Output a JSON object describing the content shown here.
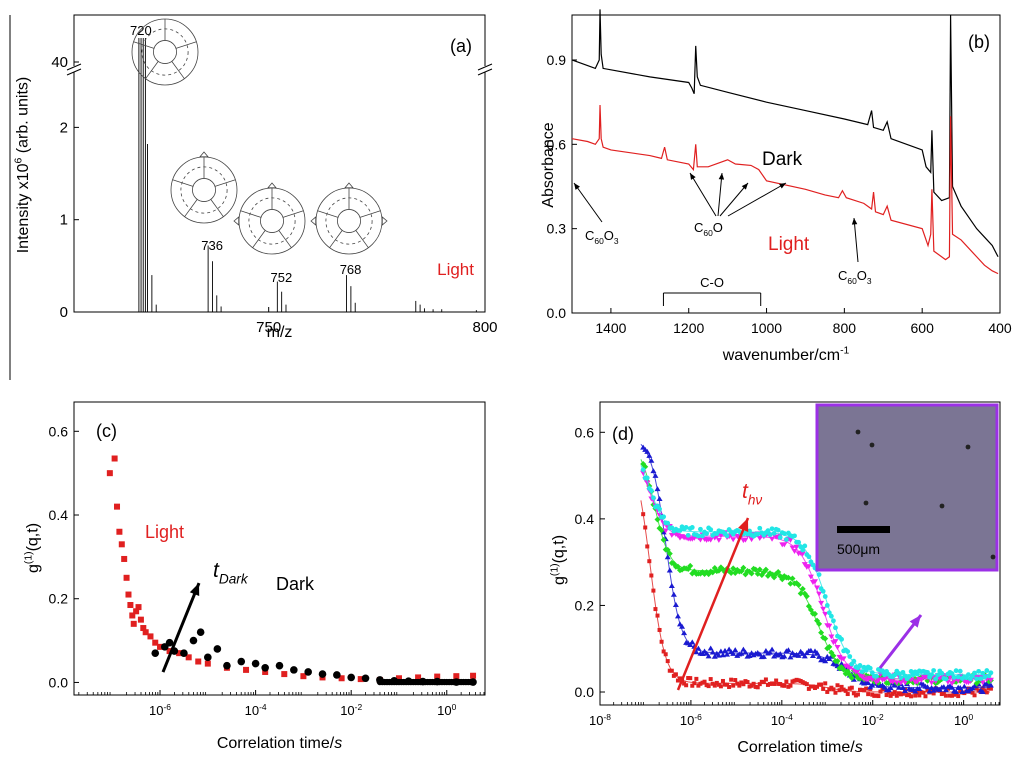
{
  "colors": {
    "axis": "#000000",
    "red": "#e02020",
    "green": "#22dd22",
    "blue": "#1a1ad0",
    "magenta": "#ee22ee",
    "cyan": "#22e6e6",
    "inset_border": "#9b30e6",
    "inset_fill": "#7b7594"
  },
  "chart_data": [
    {
      "id": "a",
      "type": "line",
      "panel_label": "(a)",
      "xlabel": "m/z",
      "ylabel_main": "Intensity x10",
      "ylabel_sup": "6",
      "ylabel_tail": "(arb. units)",
      "xlim": [
        705,
        800
      ],
      "xticks": [
        {
          "v": 750,
          "t": "750"
        },
        {
          "v": 800,
          "t": "800"
        }
      ],
      "ylim": [
        0,
        2.6
      ],
      "yticks": [
        {
          "v": 0,
          "t": "0"
        },
        {
          "v": 1,
          "t": "1"
        },
        {
          "v": 2,
          "t": "2"
        }
      ],
      "upper_tick": "40",
      "axis_break": true,
      "peak_labels": [
        {
          "x": 720,
          "t": "720"
        },
        {
          "x": 736,
          "t": "736"
        },
        {
          "x": 752,
          "t": "752"
        },
        {
          "x": 768,
          "t": "768"
        }
      ],
      "annotation": "Light",
      "peaks": [
        [
          720,
          3.5
        ],
        [
          720.5,
          3.5
        ],
        [
          721,
          3.5
        ],
        [
          721.5,
          3.3
        ],
        [
          722,
          1.82
        ],
        [
          723,
          0.4
        ],
        [
          724,
          0.08
        ],
        [
          736,
          0.72
        ],
        [
          737,
          0.55
        ],
        [
          738,
          0.18
        ],
        [
          739,
          0.06
        ],
        [
          752,
          0.33
        ],
        [
          753,
          0.22
        ],
        [
          754,
          0.08
        ],
        [
          768,
          0.4
        ],
        [
          769,
          0.28
        ],
        [
          770,
          0.1
        ],
        [
          784,
          0.12
        ],
        [
          785,
          0.08
        ],
        [
          786,
          0.04
        ],
        [
          788,
          0.03
        ],
        [
          790,
          0.03
        ],
        [
          798,
          0.02
        ]
      ]
    },
    {
      "id": "b",
      "type": "line",
      "panel_label": "(b)",
      "xlabel": "wavenumber/cm",
      "xlabel_sup": "-1",
      "ylabel": "Absorbance",
      "xlim": [
        1500,
        400
      ],
      "ylim": [
        0,
        1.06
      ],
      "xticks": [
        {
          "v": 1400,
          "t": "1400"
        },
        {
          "v": 1200,
          "t": "1200"
        },
        {
          "v": 1000,
          "t": "1000"
        },
        {
          "v": 800,
          "t": "800"
        },
        {
          "v": 600,
          "t": "600"
        },
        {
          "v": 400,
          "t": "400"
        }
      ],
      "yticks": [
        {
          "v": 0.0,
          "t": "0.0"
        },
        {
          "v": 0.3,
          "t": "0.3"
        },
        {
          "v": 0.6,
          "t": "0.6"
        },
        {
          "v": 0.9,
          "t": "0.9"
        }
      ],
      "series": [
        {
          "name": "Dark",
          "points": [
            [
              1500,
              0.9
            ],
            [
              1460,
              0.88
            ],
            [
              1440,
              0.87
            ],
            [
              1430,
              0.9
            ],
            [
              1428,
              1.08
            ],
            [
              1425,
              0.92
            ],
            [
              1420,
              0.87
            ],
            [
              1400,
              0.865
            ],
            [
              1300,
              0.84
            ],
            [
              1200,
              0.82
            ],
            [
              1192,
              0.8
            ],
            [
              1186,
              0.78
            ],
            [
              1182,
              0.95
            ],
            [
              1178,
              0.84
            ],
            [
              1170,
              0.81
            ],
            [
              1100,
              0.785
            ],
            [
              1000,
              0.75
            ],
            [
              900,
              0.72
            ],
            [
              800,
              0.69
            ],
            [
              740,
              0.67
            ],
            [
              730,
              0.72
            ],
            [
              725,
              0.66
            ],
            [
              700,
              0.65
            ],
            [
              690,
              0.68
            ],
            [
              680,
              0.62
            ],
            [
              600,
              0.58
            ],
            [
              590,
              0.52
            ],
            [
              578,
              0.5
            ],
            [
              575,
              0.65
            ],
            [
              570,
              0.43
            ],
            [
              550,
              0.4
            ],
            [
              530,
              0.41
            ],
            [
              527,
              1.06
            ],
            [
              522,
              0.45
            ],
            [
              500,
              0.38
            ],
            [
              460,
              0.3
            ],
            [
              440,
              0.27
            ],
            [
              420,
              0.24
            ],
            [
              405,
              0.2
            ]
          ]
        },
        {
          "name": "Light",
          "points": [
            [
              1500,
              0.62
            ],
            [
              1460,
              0.61
            ],
            [
              1440,
              0.6
            ],
            [
              1430,
              0.62
            ],
            [
              1428,
              0.74
            ],
            [
              1425,
              0.62
            ],
            [
              1420,
              0.59
            ],
            [
              1400,
              0.58
            ],
            [
              1300,
              0.56
            ],
            [
              1270,
              0.55
            ],
            [
              1262,
              0.59
            ],
            [
              1255,
              0.545
            ],
            [
              1200,
              0.53
            ],
            [
              1188,
              0.51
            ],
            [
              1182,
              0.6
            ],
            [
              1178,
              0.52
            ],
            [
              1150,
              0.52
            ],
            [
              1100,
              0.545
            ],
            [
              1080,
              0.53
            ],
            [
              1040,
              0.525
            ],
            [
              1020,
              0.51
            ],
            [
              1000,
              0.47
            ],
            [
              900,
              0.44
            ],
            [
              850,
              0.42
            ],
            [
              815,
              0.41
            ],
            [
              805,
              0.435
            ],
            [
              795,
              0.41
            ],
            [
              750,
              0.39
            ],
            [
              730,
              0.37
            ],
            [
              725,
              0.43
            ],
            [
              720,
              0.36
            ],
            [
              700,
              0.35
            ],
            [
              690,
              0.38
            ],
            [
              680,
              0.33
            ],
            [
              600,
              0.3
            ],
            [
              585,
              0.24
            ],
            [
              578,
              0.28
            ],
            [
              575,
              0.44
            ],
            [
              570,
              0.22
            ],
            [
              540,
              0.19
            ],
            [
              530,
              0.2
            ],
            [
              527,
              0.7
            ],
            [
              522,
              0.28
            ],
            [
              500,
              0.26
            ],
            [
              460,
              0.2
            ],
            [
              440,
              0.17
            ],
            [
              420,
              0.15
            ],
            [
              405,
              0.14
            ]
          ]
        }
      ],
      "labels": {
        "dark": "Dark",
        "light": "Light",
        "c60o": "C",
        "c60o_sub": "60",
        "c60o_tail": "O",
        "c60o3_tail": "O",
        "c60o3_sub2": "3",
        "co": "C-O"
      },
      "co_bracket": [
        1265,
        1015
      ]
    },
    {
      "id": "c",
      "type": "scatter",
      "panel_label": "(c)",
      "xlabel": "Correlation time/",
      "xlabel_it": "s",
      "ylabel_main": "g",
      "ylabel_sup": "(1)",
      "ylabel_tail": "(q,t)",
      "xlim_log10": [
        -7.8,
        0.8
      ],
      "ylim": [
        -0.03,
        0.67
      ],
      "xticks": [
        {
          "e": -6,
          "t": "10",
          "s": "-6"
        },
        {
          "e": -4,
          "t": "10",
          "s": "-4"
        },
        {
          "e": -2,
          "t": "10",
          "s": "-2"
        },
        {
          "e": 0,
          "t": "10",
          "s": "0"
        }
      ],
      "yticks": [
        {
          "v": 0.0,
          "t": "0.0"
        },
        {
          "v": 0.2,
          "t": "0.2"
        },
        {
          "v": 0.4,
          "t": "0.4"
        },
        {
          "v": 0.6,
          "t": "0.6"
        }
      ],
      "labels": {
        "light": "Light",
        "dark": "Dark",
        "t": "t",
        "t_sub": "Dark"
      },
      "series": [
        {
          "name": "Light",
          "values": [
            [
              -7.05,
              0.5
            ],
            [
              -6.95,
              0.535
            ],
            [
              -6.9,
              0.42
            ],
            [
              -6.85,
              0.36
            ],
            [
              -6.8,
              0.33
            ],
            [
              -6.75,
              0.295
            ],
            [
              -6.7,
              0.25
            ],
            [
              -6.66,
              0.21
            ],
            [
              -6.62,
              0.185
            ],
            [
              -6.58,
              0.16
            ],
            [
              -6.55,
              0.14
            ],
            [
              -6.5,
              0.17
            ],
            [
              -6.45,
              0.18
            ],
            [
              -6.4,
              0.15
            ],
            [
              -6.35,
              0.13
            ],
            [
              -6.3,
              0.12
            ],
            [
              -6.2,
              0.11
            ],
            [
              -6.1,
              0.095
            ],
            [
              -6.0,
              0.085
            ],
            [
              -5.8,
              0.075
            ],
            [
              -5.6,
              0.07
            ],
            [
              -5.4,
              0.06
            ],
            [
              -5.2,
              0.05
            ],
            [
              -5.0,
              0.045
            ],
            [
              -4.6,
              0.035
            ],
            [
              -4.2,
              0.03
            ],
            [
              -3.8,
              0.025
            ],
            [
              -3.4,
              0.02
            ],
            [
              -3.0,
              0.015
            ],
            [
              -2.6,
              0.012
            ],
            [
              -2.2,
              0.01
            ],
            [
              -1.8,
              0.008
            ],
            [
              -1.4,
              0.006
            ],
            [
              -1.0,
              0.01
            ],
            [
              -0.6,
              0.012
            ],
            [
              -0.2,
              0.014
            ],
            [
              0.2,
              0.015
            ],
            [
              0.55,
              0.016
            ]
          ]
        },
        {
          "name": "Dark",
          "values": [
            [
              -6.1,
              0.07
            ],
            [
              -5.9,
              0.085
            ],
            [
              -5.8,
              0.095
            ],
            [
              -5.7,
              0.075
            ],
            [
              -5.5,
              0.07
            ],
            [
              -5.3,
              0.1
            ],
            [
              -5.15,
              0.12
            ],
            [
              -5.0,
              0.06
            ],
            [
              -4.8,
              0.08
            ],
            [
              -4.6,
              0.04
            ],
            [
              -4.3,
              0.05
            ],
            [
              -4.0,
              0.045
            ],
            [
              -3.8,
              0.035
            ],
            [
              -3.5,
              0.04
            ],
            [
              -3.2,
              0.03
            ],
            [
              -2.9,
              0.025
            ],
            [
              -2.6,
              0.02
            ],
            [
              -2.3,
              0.018
            ],
            [
              -2.0,
              0.012
            ],
            [
              -1.7,
              0.01
            ],
            [
              -1.4,
              0.006
            ],
            [
              -1.1,
              0.004
            ],
            [
              -0.8,
              0.003
            ],
            [
              -0.5,
              0.002
            ],
            [
              -0.2,
              0.002
            ],
            [
              0.2,
              0.001
            ],
            [
              0.55,
              0.001
            ]
          ]
        }
      ]
    },
    {
      "id": "d",
      "type": "scatter",
      "panel_label": "(d)",
      "xlabel": "Correlation time/",
      "xlabel_it": "s",
      "ylabel_main": "g",
      "ylabel_sup": "(1)",
      "ylabel_tail": "(q,t)",
      "xlim_log10": [
        -8,
        0.8
      ],
      "ylim": [
        -0.03,
        0.67
      ],
      "xticks": [
        {
          "e": -8,
          "t": "10",
          "s": "-8"
        },
        {
          "e": -6,
          "t": "10",
          "s": "-6"
        },
        {
          "e": -4,
          "t": "10",
          "s": "-4"
        },
        {
          "e": -2,
          "t": "10",
          "s": "-2"
        },
        {
          "e": 0,
          "t": "10",
          "s": "0"
        }
      ],
      "yticks": [
        {
          "v": 0.0,
          "t": "0.0"
        },
        {
          "v": 0.2,
          "t": "0.2"
        },
        {
          "v": 0.4,
          "t": "0.4"
        },
        {
          "v": 0.6,
          "t": "0.6"
        }
      ],
      "labels": {
        "t": "t",
        "t_sub": "hν",
        "scale": "500μm"
      },
      "curves": [
        {
          "color": "red",
          "A": 0.55,
          "tau1": -6.9,
          "plateau": 0.02,
          "tau2": -3.0,
          "base": 0.0
        },
        {
          "color": "blue",
          "A": 0.5,
          "tau1": -6.55,
          "plateau": 0.09,
          "tau2": -2.6,
          "base": 0.01
        },
        {
          "color": "green",
          "A": 0.3,
          "tau1": -6.8,
          "plateau": 0.28,
          "tau2": -3.2,
          "base": 0.03
        },
        {
          "color": "magenta",
          "A": 0.2,
          "tau1": -6.9,
          "plateau": 0.36,
          "tau2": -3.1,
          "base": 0.03
        },
        {
          "color": "cyan",
          "A": 0.2,
          "tau1": -6.9,
          "plateau": 0.37,
          "tau2": -3.0,
          "base": 0.04
        }
      ]
    }
  ]
}
